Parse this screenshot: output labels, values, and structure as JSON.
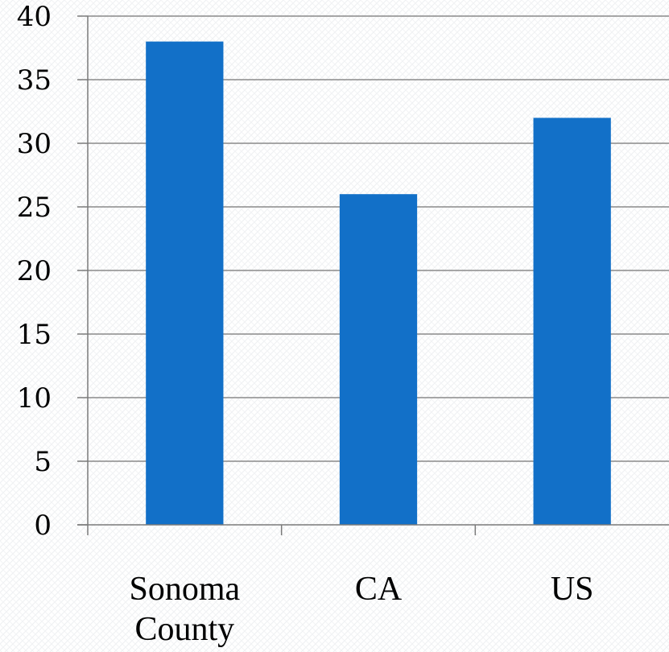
{
  "chart_data": {
    "type": "bar",
    "categories": [
      "Sonoma County",
      "CA",
      "US"
    ],
    "category_lines": [
      [
        "Sonoma",
        "County"
      ],
      [
        "CA"
      ],
      [
        "US"
      ]
    ],
    "values": [
      38,
      26,
      32
    ],
    "title": "",
    "xlabel": "",
    "ylabel": "",
    "ylim": [
      0,
      40
    ],
    "yticks": [
      "0",
      "5",
      "10",
      "15",
      "20",
      "25",
      "30",
      "35",
      "40"
    ],
    "grid": true,
    "legend": "none",
    "bar_color": "#1270c8"
  }
}
